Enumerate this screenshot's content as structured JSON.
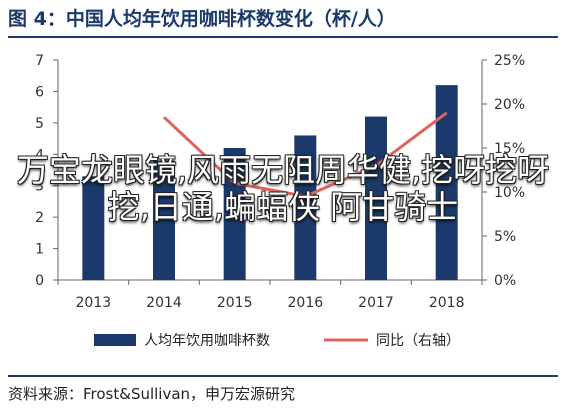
{
  "header": {
    "title": "图 4：中国人均年饮用咖啡杯数变化（杯/人）"
  },
  "footer": {
    "source": "资料来源：Frost&Sullivan，申万宏源研究"
  },
  "overlay_text": "万宝龙眼镜,风雨无阻周华健,挖呀挖呀挖,日通,蝙蝠侠 阿甘骑士",
  "colors": {
    "bar": "#1b3a6b",
    "line": "#e0625d",
    "title": "#1b3a6b"
  },
  "chart_data": {
    "type": "bar",
    "categories": [
      "2013",
      "2014",
      "2015",
      "2016",
      "2017",
      "2018"
    ],
    "series": [
      {
        "name": "人均年饮用咖啡杯数",
        "type": "bar",
        "axis": "left",
        "values": [
          3.3,
          3.8,
          4.2,
          4.6,
          5.2,
          6.2
        ]
      },
      {
        "name": "同比（右轴）",
        "type": "line",
        "axis": "right",
        "values": [
          null,
          18.5,
          11.0,
          9.5,
          13.0,
          19.0
        ]
      }
    ],
    "ylim_left": [
      0,
      7
    ],
    "ylim_right": [
      0,
      25
    ],
    "yticks_left": [
      "0",
      "1",
      "2",
      "3",
      "4",
      "5",
      "6",
      "7"
    ],
    "yticks_right": [
      "0%",
      "5%",
      "10%",
      "15%",
      "20%",
      "25%"
    ],
    "legend_position": "bottom",
    "grid": false
  }
}
